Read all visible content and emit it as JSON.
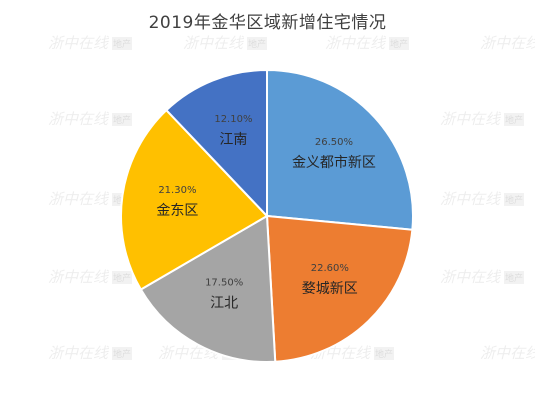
{
  "chart_data": {
    "type": "pie",
    "title": "2019年金华区域新增住宅情况",
    "slices": [
      {
        "label": "金义都市新区",
        "value": 26.5,
        "value_label": "26.50%",
        "color": "#5B9BD5"
      },
      {
        "label": "婺城新区",
        "value": 22.6,
        "value_label": "22.60%",
        "color": "#ED7D31"
      },
      {
        "label": "江北",
        "value": 17.5,
        "value_label": "17.50%",
        "color": "#A5A5A5"
      },
      {
        "label": "金东区",
        "value": 21.3,
        "value_label": "21.30%",
        "color": "#FFC000"
      },
      {
        "label": "江南",
        "value": 12.1,
        "value_label": "12.10%",
        "color": "#4472C4"
      }
    ],
    "start_angle": "12 o'clock",
    "direction": "clockwise",
    "legend": "none",
    "data_labels": "inside"
  },
  "watermark": {
    "text": "浙中在线",
    "badge": "地产"
  }
}
